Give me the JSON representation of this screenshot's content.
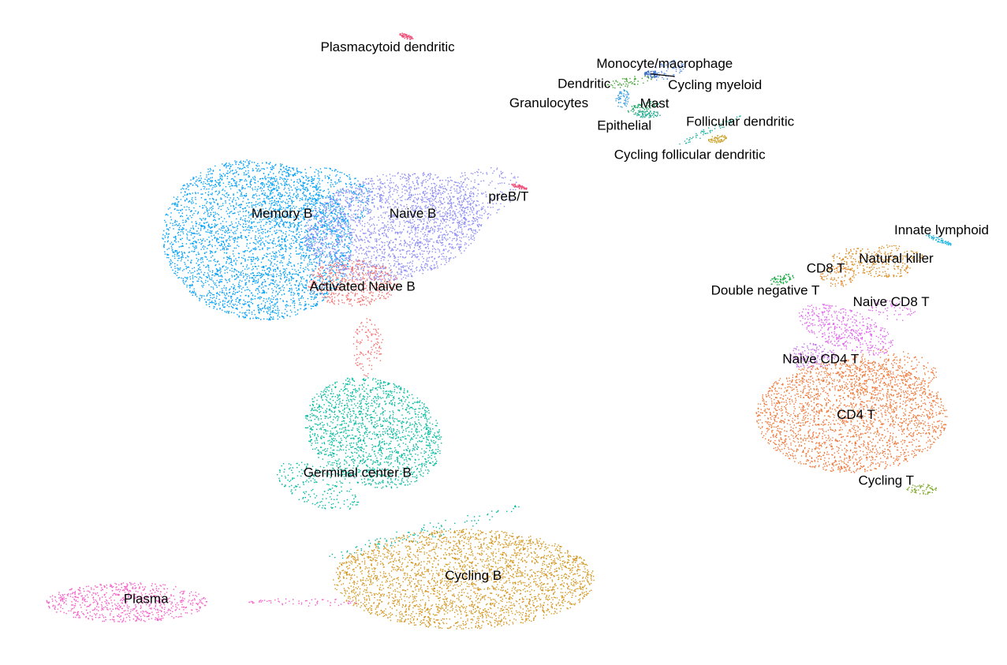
{
  "chart_data": {
    "type": "scatter",
    "title": "",
    "xlabel": "",
    "ylabel": "",
    "axes": "none",
    "grid": false,
    "legend": "none",
    "xlim": [
      0,
      100
    ],
    "ylim": [
      0,
      100
    ],
    "clusters": [
      {
        "name": "Memory B",
        "color": "#00A0FA",
        "label_x": 28,
        "label_y": 68,
        "blobs": [
          {
            "cx": 25.5,
            "cy": 64,
            "rx": 9.5,
            "ry": 12,
            "a": 10,
            "w": 1.0
          },
          {
            "cx": 31,
            "cy": 70,
            "rx": 6,
            "ry": 5,
            "a": 0,
            "w": 0.5
          }
        ]
      },
      {
        "name": "Naive B",
        "color": "#8D8DF5",
        "label_x": 41,
        "label_y": 68,
        "blobs": [
          {
            "cx": 39,
            "cy": 66,
            "rx": 9,
            "ry": 8,
            "a": -10,
            "w": 1.0
          },
          {
            "cx": 46,
            "cy": 70,
            "rx": 6,
            "ry": 4,
            "a": -20,
            "w": 0.4
          }
        ]
      },
      {
        "name": "Activated Naive B",
        "color": "#F3716E",
        "label_x": 36,
        "label_y": 57,
        "blobs": [
          {
            "cx": 35,
            "cy": 57.5,
            "rx": 4.5,
            "ry": 3.5,
            "a": 0,
            "w": 1.0
          },
          {
            "cx": 36.5,
            "cy": 48,
            "rx": 1.5,
            "ry": 4.5,
            "a": 0,
            "w": 0.6
          }
        ]
      },
      {
        "name": "preB/T",
        "color": "#F0507A",
        "label_x": 50.5,
        "label_y": 70.5,
        "blobs": [
          {
            "cx": 51.5,
            "cy": 72,
            "rx": 0.8,
            "ry": 0.3,
            "a": 15,
            "w": 1.0
          }
        ]
      },
      {
        "name": "Germinal center B",
        "color": "#00BA9E",
        "label_x": 35.5,
        "label_y": 29,
        "blobs": [
          {
            "cx": 37,
            "cy": 35,
            "rx": 7,
            "ry": 8,
            "a": 20,
            "w": 1.0
          },
          {
            "cx": 31.5,
            "cy": 27,
            "rx": 4.5,
            "ry": 3,
            "a": 20,
            "w": 0.5
          },
          {
            "cx": 42,
            "cy": 20,
            "rx": 10,
            "ry": 1.2,
            "a": -15,
            "w": 0.3
          }
        ]
      },
      {
        "name": "Cycling B",
        "color": "#D4961F",
        "label_x": 47,
        "label_y": 13.5,
        "blobs": [
          {
            "cx": 46,
            "cy": 13,
            "rx": 13,
            "ry": 7.5,
            "a": 0,
            "w": 1.0
          }
        ]
      },
      {
        "name": "Plasma",
        "color": "#F65CC8",
        "label_x": 14.5,
        "label_y": 10,
        "blobs": [
          {
            "cx": 12.5,
            "cy": 9.5,
            "rx": 8,
            "ry": 3,
            "a": 0,
            "w": 1.0
          },
          {
            "cx": 30,
            "cy": 9.5,
            "rx": 5.5,
            "ry": 0.6,
            "a": 0,
            "w": 0.3
          }
        ]
      },
      {
        "name": "Plasmacytoid dendritic",
        "color": "#F0507A",
        "label_x": 38.5,
        "label_y": 93,
        "blobs": [
          {
            "cx": 40.3,
            "cy": 94.6,
            "rx": 0.7,
            "ry": 0.35,
            "a": 20,
            "w": 1.0
          }
        ]
      },
      {
        "name": "Monocyte/macrophage",
        "color": "#5B8FE6",
        "label_x": 66,
        "label_y": 90.5,
        "blobs": [
          {
            "cx": 66.2,
            "cy": 89.5,
            "rx": 1.8,
            "ry": 1.3,
            "a": -20,
            "w": 1.0
          }
        ]
      },
      {
        "name": "Cycling myeloid",
        "color": "#3A6EC9",
        "label_x": 71,
        "label_y": 87.3,
        "blobs": [
          {
            "cx": 64.6,
            "cy": 88.9,
            "rx": 0.7,
            "ry": 0.6,
            "a": 0,
            "w": 1.0
          }
        ]
      },
      {
        "name": "Dendritic",
        "color": "#44A534",
        "label_x": 58,
        "label_y": 87.5,
        "blobs": [
          {
            "cx": 62.5,
            "cy": 87.8,
            "rx": 2.5,
            "ry": 0.7,
            "a": -10,
            "w": 1.0
          }
        ]
      },
      {
        "name": "Granulocytes",
        "color": "#3CA0E0",
        "label_x": 54.5,
        "label_y": 84.6,
        "blobs": [
          {
            "cx": 61.8,
            "cy": 85.2,
            "rx": 0.7,
            "ry": 1.4,
            "a": 20,
            "w": 1.0
          }
        ]
      },
      {
        "name": "Mast",
        "color": "#1BA366",
        "label_x": 65,
        "label_y": 84.5,
        "blobs": [
          {
            "cx": 63.8,
            "cy": 84,
            "rx": 1.6,
            "ry": 0.7,
            "a": -15,
            "w": 1.0
          }
        ]
      },
      {
        "name": "Epithelial",
        "color": "#14A88A",
        "label_x": 62,
        "label_y": 81.2,
        "blobs": [
          {
            "cx": 64.2,
            "cy": 82.9,
            "rx": 1.4,
            "ry": 0.5,
            "a": 0,
            "w": 1.0
          }
        ]
      },
      {
        "name": "Follicular dendritic",
        "color": "#1AB09C",
        "label_x": 73.5,
        "label_y": 81.8,
        "blobs": [
          {
            "cx": 70.5,
            "cy": 80.5,
            "rx": 3.4,
            "ry": 0.5,
            "a": -25,
            "w": 1.0
          }
        ]
      },
      {
        "name": "Cycling follicular dendritic",
        "color": "#C9A227",
        "label_x": 68.5,
        "label_y": 76.8,
        "blobs": [
          {
            "cx": 71.2,
            "cy": 79.2,
            "rx": 0.9,
            "ry": 0.6,
            "a": -10,
            "w": 1.0
          }
        ]
      },
      {
        "name": "Innate lymphoid",
        "color": "#1DB5E0",
        "label_x": 93.5,
        "label_y": 65.5,
        "blobs": [
          {
            "cx": 93.2,
            "cy": 64,
            "rx": 1.4,
            "ry": 0.35,
            "a": 20,
            "w": 1.0
          }
        ]
      },
      {
        "name": "Natural killer",
        "color": "#D88A1E",
        "label_x": 89,
        "label_y": 61.2,
        "blobs": [
          {
            "cx": 86.5,
            "cy": 60.5,
            "rx": 4,
            "ry": 2,
            "a": 10,
            "w": 1.0
          },
          {
            "cx": 89.5,
            "cy": 62,
            "rx": 2.5,
            "ry": 1,
            "a": 15,
            "w": 0.5
          }
        ]
      },
      {
        "name": "CD8 T",
        "color": "#E68A2E",
        "label_x": 82,
        "label_y": 59.7,
        "blobs": [
          {
            "cx": 83.2,
            "cy": 58.5,
            "rx": 1.8,
            "ry": 1.6,
            "a": 0,
            "w": 1.0
          }
        ]
      },
      {
        "name": "Double negative T",
        "color": "#11A83C",
        "label_x": 76,
        "label_y": 56.4,
        "blobs": [
          {
            "cx": 77.5,
            "cy": 58,
            "rx": 1.3,
            "ry": 0.7,
            "a": -15,
            "w": 1.0
          }
        ]
      },
      {
        "name": "Naive CD8 T",
        "color": "#E066EE",
        "label_x": 88.5,
        "label_y": 54.7,
        "blobs": [
          {
            "cx": 84,
            "cy": 50.5,
            "rx": 5,
            "ry": 3,
            "a": 20,
            "w": 1.0
          },
          {
            "cx": 88.5,
            "cy": 53.5,
            "rx": 2.5,
            "ry": 1.5,
            "a": 10,
            "w": 0.5
          }
        ]
      },
      {
        "name": "Naive CD4 T",
        "color": "#C56EE8",
        "label_x": 81.5,
        "label_y": 46.1,
        "blobs": [
          {
            "cx": 80.5,
            "cy": 46.5,
            "rx": 2.5,
            "ry": 2,
            "a": 0,
            "w": 1.0
          }
        ]
      },
      {
        "name": "CD4 T",
        "color": "#F0783A",
        "label_x": 85,
        "label_y": 37.7,
        "blobs": [
          {
            "cx": 84.5,
            "cy": 37.5,
            "rx": 9.5,
            "ry": 8.5,
            "a": 0,
            "w": 1.0
          },
          {
            "cx": 88,
            "cy": 44,
            "rx": 5,
            "ry": 3.5,
            "a": 0,
            "w": 0.5
          }
        ]
      },
      {
        "name": "Cycling T",
        "color": "#7EA92A",
        "label_x": 88,
        "label_y": 27.8,
        "blobs": [
          {
            "cx": 91.5,
            "cy": 26.5,
            "rx": 1.5,
            "ry": 0.8,
            "a": 0,
            "w": 1.0
          }
        ]
      }
    ]
  }
}
